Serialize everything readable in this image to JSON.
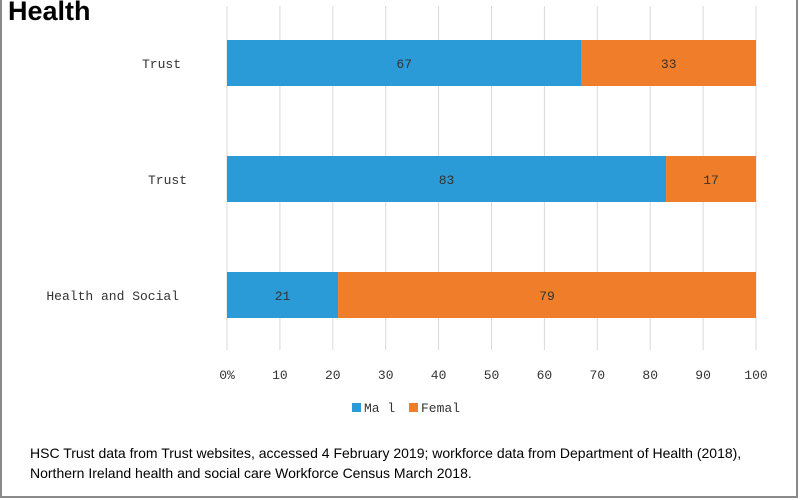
{
  "title": "Health",
  "source_note": "HSC Trust data from Trust websites, accessed 4 February 2019; workforce data from Department of Health (2018), Northern Ireland health and social care Workforce Census March 2018.",
  "colors": {
    "male": "#2a9bd6",
    "female": "#f07d2a",
    "grid": "#d9d9d9"
  },
  "chart_data": {
    "type": "bar",
    "orientation": "horizontal",
    "stacked": true,
    "categories": [
      "Trust",
      "Trust",
      "Health and Social"
    ],
    "series": [
      {
        "name": "Ma l",
        "values": [
          67,
          83,
          21
        ]
      },
      {
        "name": "Femal",
        "values": [
          33,
          17,
          79
        ]
      }
    ],
    "xlim": [
      0,
      100
    ],
    "xticks": [
      "0%",
      "10",
      "20",
      "30",
      "40",
      "50",
      "60",
      "70",
      "80",
      "90",
      "100"
    ],
    "legend": "bottom",
    "grid": true
  }
}
